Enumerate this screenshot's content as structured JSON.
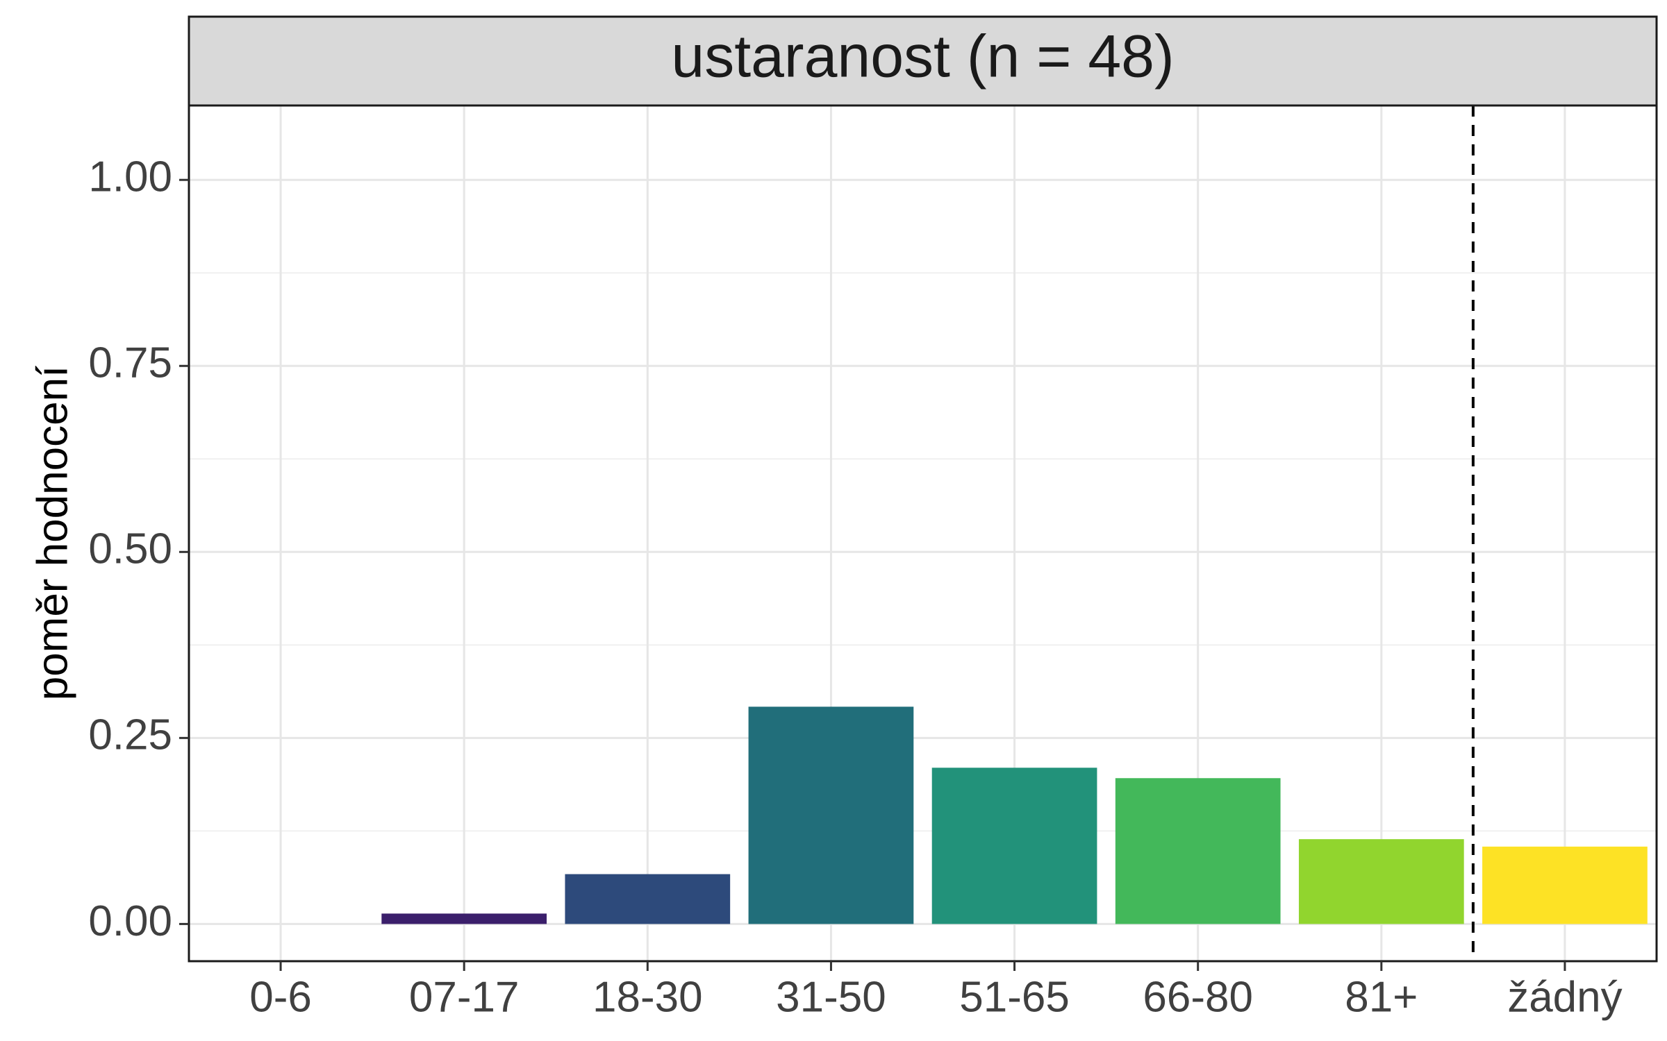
{
  "chart_data": {
    "type": "bar",
    "facet_title": "ustaranost (n = 48)",
    "xlabel": "",
    "ylabel": "poměr hodnocení",
    "categories": [
      "0-6",
      "07-17",
      "18-30",
      "31-50",
      "51-65",
      "66-80",
      "81+",
      "žádný"
    ],
    "values": [
      0.0,
      0.014,
      0.067,
      0.292,
      0.21,
      0.196,
      0.114,
      0.104
    ],
    "colors": [
      "#440154",
      "#3B1F6B",
      "#2D4A7B",
      "#216E7A",
      "#22927A",
      "#43B85A",
      "#91D52E",
      "#FDE225"
    ],
    "ylim": [
      -0.05,
      1.1
    ],
    "yticks": [
      "0.00",
      "0.25",
      "0.50",
      "0.75",
      "1.00"
    ],
    "ytick_values": [
      0,
      0.25,
      0.5,
      0.75,
      1.0
    ],
    "reference_line": {
      "between": [
        "81+",
        "žádný"
      ],
      "style": "dashed",
      "color": "#000000"
    },
    "grid": true,
    "legend": "none"
  }
}
